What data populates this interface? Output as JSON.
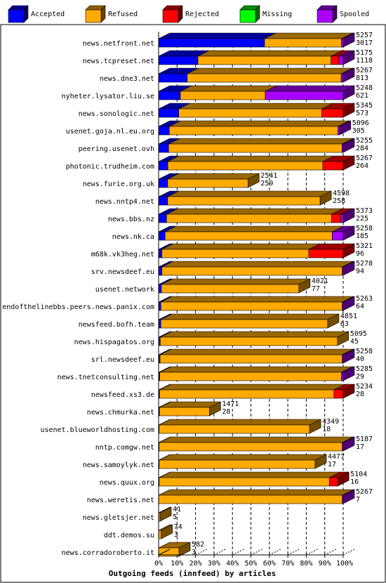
{
  "chart_data": {
    "type": "bar",
    "orientation": "horizontal",
    "stacked": true,
    "title": "Outgoing feeds (innfeed) by articles",
    "xlabel": "",
    "ylabel": "",
    "xlim": [
      0,
      100
    ],
    "x_ticks": [
      "0%",
      "10%",
      "20%",
      "30%",
      "40%",
      "50%",
      "60%",
      "70%",
      "80%",
      "90%",
      "100%"
    ],
    "grid": "vertical-dashed",
    "legend_position": "top",
    "legend": [
      {
        "name": "Accepted",
        "color": "#0000ff"
      },
      {
        "name": "Refused",
        "color": "#ffaa00"
      },
      {
        "name": "Rejected",
        "color": "#ff0000"
      },
      {
        "name": "Missing",
        "color": "#00ff00"
      },
      {
        "name": "Spooled",
        "color": "#aa00ff"
      }
    ],
    "rows": [
      {
        "name": "news.netfront.net",
        "total": "5257",
        "accepted_count": "3017",
        "segments": [
          57.4,
          41.7,
          0,
          0,
          0.9
        ]
      },
      {
        "name": "news.tcpreset.net",
        "total": "5175",
        "accepted_count": "1118",
        "segments": [
          21.3,
          72.1,
          4.3,
          0,
          2.3
        ]
      },
      {
        "name": "news.dne3.net",
        "total": "5267",
        "accepted_count": "813",
        "segments": [
          15.5,
          83.4,
          0,
          0,
          1.1
        ]
      },
      {
        "name": "nyheter.lysator.liu.se",
        "total": "5248",
        "accepted_count": "621",
        "segments": [
          11.8,
          46.0,
          0,
          0,
          42.2
        ]
      },
      {
        "name": "news.sonologic.net",
        "total": "5345",
        "accepted_count": "573",
        "segments": [
          10.9,
          77.5,
          11.6,
          0,
          0
        ]
      },
      {
        "name": "usenet.goja.nl.eu.org",
        "total": "5096",
        "accepted_count": "305",
        "segments": [
          5.8,
          91.4,
          0,
          0,
          0.8
        ]
      },
      {
        "name": "peering.usenet.ovh",
        "total": "5255",
        "accepted_count": "284",
        "segments": [
          5.4,
          94.0,
          0,
          0,
          0.6
        ]
      },
      {
        "name": "photonic.trudheim.com",
        "total": "5267",
        "accepted_count": "264",
        "segments": [
          5.0,
          84.0,
          11.0,
          0,
          0
        ]
      },
      {
        "name": "news.furie.org.uk",
        "total": "2541",
        "accepted_count": "259",
        "segments": [
          4.9,
          43.5,
          0,
          0,
          0
        ]
      },
      {
        "name": "news.nntp4.net",
        "total": "4598",
        "accepted_count": "258",
        "segments": [
          4.9,
          82.6,
          0,
          0,
          0
        ]
      },
      {
        "name": "news.bbs.nz",
        "total": "5373",
        "accepted_count": "225",
        "segments": [
          4.3,
          89.4,
          5.0,
          0,
          1.3
        ]
      },
      {
        "name": "news.nk.ca",
        "total": "5258",
        "accepted_count": "185",
        "segments": [
          3.5,
          90.6,
          0,
          0,
          5.9
        ]
      },
      {
        "name": "m68k.vk3heg.net",
        "total": "5321",
        "accepted_count": "96",
        "segments": [
          1.8,
          79.5,
          18.7,
          0,
          0
        ]
      },
      {
        "name": "srv.newsdeef.eu",
        "total": "5278",
        "accepted_count": "94",
        "segments": [
          1.8,
          97.7,
          0,
          0,
          0.5
        ]
      },
      {
        "name": "usenet.network",
        "total": "4021",
        "accepted_count": "77",
        "segments": [
          1.5,
          74.5,
          0,
          0,
          0
        ]
      },
      {
        "name": "endofthelinebbs.peers.news.panix.com",
        "total": "5263",
        "accepted_count": "64",
        "segments": [
          1.2,
          98.3,
          0,
          0,
          0.5
        ]
      },
      {
        "name": "newsfeed.bofh.team",
        "total": "4851",
        "accepted_count": "63",
        "segments": [
          1.2,
          90.4,
          0,
          0,
          0
        ]
      },
      {
        "name": "news.hispagatos.org",
        "total": "5095",
        "accepted_count": "45",
        "segments": [
          0.9,
          96.0,
          0,
          0,
          0
        ]
      },
      {
        "name": "srl.newsdeef.eu",
        "total": "5258",
        "accepted_count": "40",
        "segments": [
          0.8,
          98.7,
          0,
          0,
          0.5
        ]
      },
      {
        "name": "news.tnetconsulting.net",
        "total": "5285",
        "accepted_count": "29",
        "segments": [
          0.6,
          98.4,
          0,
          0,
          1.0
        ]
      },
      {
        "name": "newsfeed.xs3.de",
        "total": "5234",
        "accepted_count": "28",
        "segments": [
          0.5,
          94.5,
          5.0,
          0,
          0
        ]
      },
      {
        "name": "news.chmurka.net",
        "total": "1471",
        "accepted_count": "28",
        "segments": [
          0.5,
          27.0,
          0,
          0,
          0
        ]
      },
      {
        "name": "usenet.blueworldhosting.com",
        "total": "4349",
        "accepted_count": "18",
        "segments": [
          0.3,
          81.5,
          0,
          0,
          0
        ]
      },
      {
        "name": "nntp.comgw.net",
        "total": "5187",
        "accepted_count": "17",
        "segments": [
          0.3,
          99.2,
          0,
          0,
          0.5
        ]
      },
      {
        "name": "news.samoylyk.net",
        "total": "4477",
        "accepted_count": "17",
        "segments": [
          0.3,
          84.5,
          0,
          0,
          0
        ]
      },
      {
        "name": "news.quux.org",
        "total": "5104",
        "accepted_count": "16",
        "segments": [
          0.3,
          92.2,
          4.5,
          0,
          0
        ]
      },
      {
        "name": "news.weretis.net",
        "total": "5267",
        "accepted_count": "7",
        "segments": [
          0.1,
          99.4,
          0,
          0,
          0.5
        ]
      },
      {
        "name": "news.gletsjer.net",
        "total": "41",
        "accepted_count": "5",
        "segments": [
          0.1,
          0.7,
          0,
          0,
          0
        ]
      },
      {
        "name": "ddt.demos.su",
        "total": "74",
        "accepted_count": "3",
        "segments": [
          0.05,
          1.35,
          0,
          0,
          0
        ]
      },
      {
        "name": "news.corradoroberto.it",
        "total": "582",
        "accepted_count": "3",
        "segments": [
          0.05,
          11.0,
          0,
          0,
          0
        ]
      }
    ]
  }
}
